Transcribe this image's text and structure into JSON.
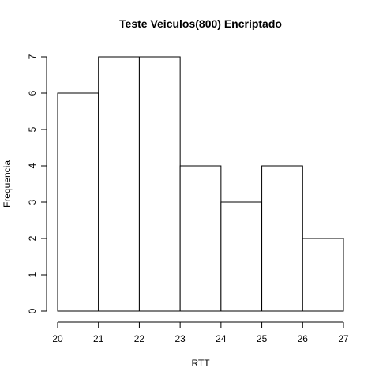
{
  "chart_data": {
    "type": "bar",
    "title": "Teste Veiculos(800) Encriptado",
    "xlabel": "RTT",
    "ylabel": "Frequencia",
    "bins": [
      {
        "from": 20,
        "to": 21,
        "value": 6
      },
      {
        "from": 21,
        "to": 22,
        "value": 7
      },
      {
        "from": 22,
        "to": 23,
        "value": 7
      },
      {
        "from": 23,
        "to": 24,
        "value": 4
      },
      {
        "from": 24,
        "to": 25,
        "value": 3
      },
      {
        "from": 25,
        "to": 26,
        "value": 4
      },
      {
        "from": 26,
        "to": 27,
        "value": 2
      }
    ],
    "xlim": [
      20,
      27
    ],
    "ylim": [
      0,
      7
    ],
    "xticks": [
      "20",
      "21",
      "22",
      "23",
      "24",
      "25",
      "26",
      "27"
    ],
    "yticks": [
      "0",
      "1",
      "2",
      "3",
      "4",
      "5",
      "6",
      "7"
    ],
    "grid": false,
    "bar_fill": "#ffffff",
    "bar_stroke": "#000000"
  }
}
